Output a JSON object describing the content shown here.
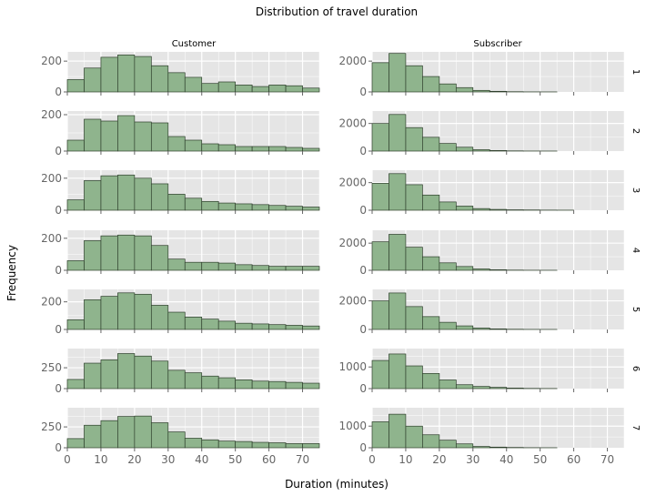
{
  "chart_data": {
    "type": "bar",
    "title": "Distribution of travel duration",
    "xlabel": "Duration (minutes)",
    "ylabel": "Frequency",
    "column_facets": [
      "Customer",
      "Subscriber"
    ],
    "row_facets": [
      "1",
      "2",
      "3",
      "4",
      "5",
      "6",
      "7"
    ],
    "bin_width": 5,
    "bin_starts": [
      0,
      5,
      10,
      15,
      20,
      25,
      30,
      35,
      40,
      45,
      50,
      55,
      60,
      65,
      70
    ],
    "xlim": [
      0,
      75
    ],
    "x_ticks": [
      0,
      10,
      20,
      30,
      40,
      50,
      60,
      70
    ],
    "grid": true,
    "panels": [
      {
        "row": "1",
        "column": "Customer",
        "ylim": [
          0,
          260
        ],
        "y_ticks": [
          0,
          200
        ],
        "values": [
          80,
          155,
          225,
          240,
          230,
          170,
          125,
          95,
          55,
          65,
          45,
          35,
          45,
          40,
          25
        ]
      },
      {
        "row": "1",
        "column": "Subscriber",
        "ylim": [
          0,
          2600
        ],
        "y_ticks": [
          0,
          2000
        ],
        "values": [
          1900,
          2500,
          1700,
          1000,
          520,
          280,
          100,
          40,
          15,
          5,
          3,
          0,
          0,
          0,
          0
        ]
      },
      {
        "row": "2",
        "column": "Customer",
        "ylim": [
          0,
          220
        ],
        "y_ticks": [
          0,
          200
        ],
        "values": [
          60,
          175,
          165,
          195,
          160,
          155,
          80,
          60,
          40,
          35,
          25,
          25,
          25,
          20,
          15
        ]
      },
      {
        "row": "2",
        "column": "Subscriber",
        "ylim": [
          0,
          2900
        ],
        "y_ticks": [
          0,
          2000
        ],
        "values": [
          2000,
          2650,
          1700,
          1000,
          550,
          280,
          100,
          40,
          15,
          5,
          3,
          0,
          0,
          0,
          0
        ]
      },
      {
        "row": "3",
        "column": "Customer",
        "ylim": [
          0,
          250
        ],
        "y_ticks": [
          0,
          200
        ],
        "values": [
          65,
          185,
          215,
          220,
          200,
          165,
          100,
          75,
          55,
          45,
          40,
          35,
          30,
          25,
          20
        ]
      },
      {
        "row": "3",
        "column": "Subscriber",
        "ylim": [
          0,
          2900
        ],
        "y_ticks": [
          0,
          2000
        ],
        "values": [
          1950,
          2650,
          1850,
          1100,
          600,
          300,
          120,
          60,
          30,
          20,
          10,
          5,
          0,
          0,
          0
        ]
      },
      {
        "row": "4",
        "column": "Customer",
        "ylim": [
          0,
          250
        ],
        "y_ticks": [
          0,
          200
        ],
        "values": [
          60,
          185,
          215,
          220,
          215,
          155,
          70,
          50,
          50,
          45,
          35,
          30,
          25,
          25,
          25
        ]
      },
      {
        "row": "4",
        "column": "Subscriber",
        "ylim": [
          0,
          2950
        ],
        "y_ticks": [
          0,
          2000
        ],
        "values": [
          2100,
          2650,
          1700,
          1000,
          550,
          280,
          100,
          40,
          15,
          5,
          3,
          0,
          0,
          0,
          0
        ]
      },
      {
        "row": "5",
        "column": "Customer",
        "ylim": [
          0,
          290
        ],
        "y_ticks": [
          0,
          200
        ],
        "values": [
          70,
          215,
          240,
          265,
          255,
          175,
          125,
          90,
          75,
          60,
          45,
          40,
          35,
          30,
          25
        ]
      },
      {
        "row": "5",
        "column": "Subscriber",
        "ylim": [
          0,
          2800
        ],
        "y_ticks": [
          0,
          2000
        ],
        "values": [
          2000,
          2550,
          1600,
          900,
          500,
          250,
          100,
          40,
          15,
          5,
          3,
          0,
          0,
          0,
          0
        ]
      },
      {
        "row": "6",
        "column": "Customer",
        "ylim": [
          0,
          480
        ],
        "y_ticks": [
          0,
          250
        ],
        "values": [
          110,
          305,
          345,
          420,
          390,
          330,
          220,
          190,
          150,
          130,
          105,
          90,
          85,
          75,
          65
        ]
      },
      {
        "row": "6",
        "column": "Subscriber",
        "ylim": [
          0,
          1850
        ],
        "y_ticks": [
          0,
          1000
        ],
        "values": [
          1300,
          1600,
          1050,
          700,
          400,
          180,
          100,
          60,
          25,
          10,
          5,
          0,
          0,
          0,
          0
        ]
      },
      {
        "row": "7",
        "column": "Customer",
        "ylim": [
          0,
          480
        ],
        "y_ticks": [
          0,
          250
        ],
        "values": [
          110,
          270,
          325,
          375,
          380,
          300,
          190,
          115,
          95,
          80,
          75,
          65,
          60,
          50,
          50
        ]
      },
      {
        "row": "7",
        "column": "Subscriber",
        "ylim": [
          0,
          1850
        ],
        "y_ticks": [
          0,
          1000
        ],
        "values": [
          1200,
          1550,
          1000,
          600,
          350,
          180,
          60,
          30,
          15,
          5,
          3,
          0,
          0,
          0,
          0
        ]
      }
    ],
    "colors": {
      "bar_fill": "#8fb48d",
      "bar_stroke": "#2e3f2c",
      "panel_bg": "#e5e5e5",
      "grid": "#ffffff",
      "tick": "#666666"
    }
  }
}
